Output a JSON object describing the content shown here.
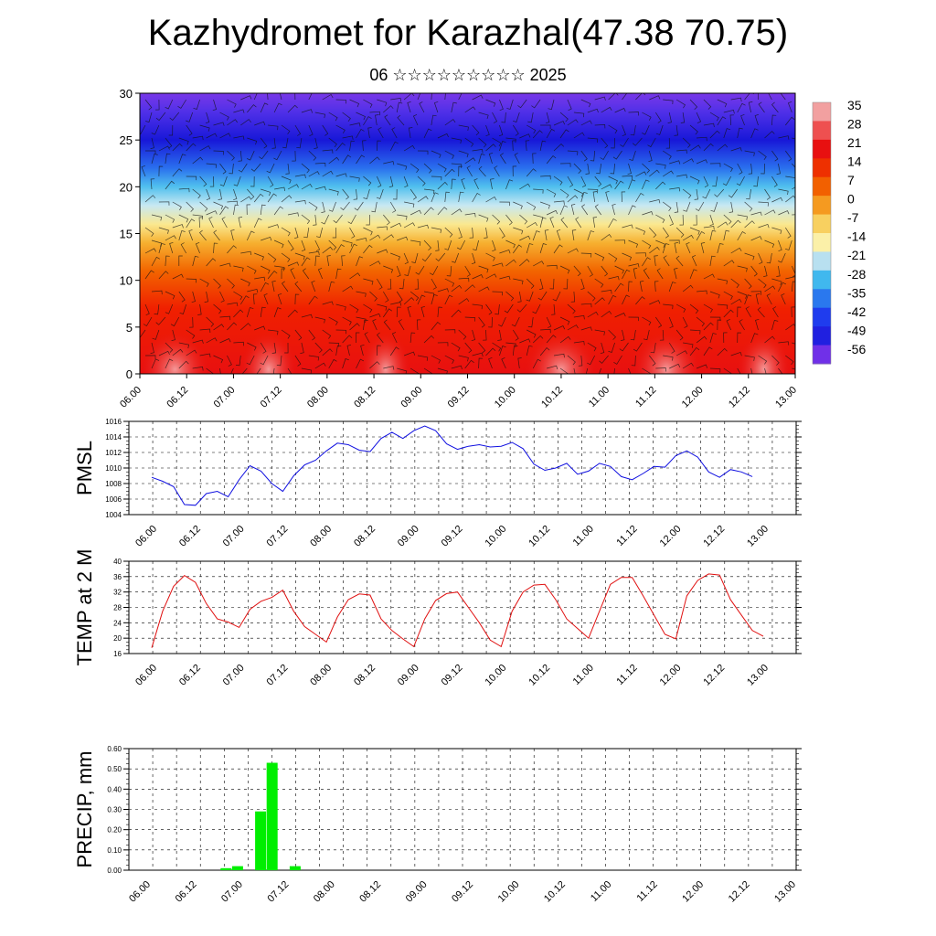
{
  "header": {
    "title": "Kazhydromet for Karazhal(47.38 70.75)",
    "subtitle": "06 ☆☆☆☆☆☆☆☆☆ 2025"
  },
  "time_labels": [
    "06.00",
    "06.12",
    "07.00",
    "07.12",
    "08.00",
    "08.12",
    "09.00",
    "09.12",
    "10.00",
    "10.12",
    "11.00",
    "11.12",
    "12.00",
    "12.12",
    "13.00"
  ],
  "colors": {
    "pmsl_line": "#1010e0",
    "temp_line": "#e01010",
    "precip_bar": "#00ee00"
  },
  "chart_data": [
    {
      "type": "heatmap",
      "name_id": "cross-section",
      "xlabel": "",
      "ylabel": "",
      "ylim": [
        0,
        30
      ],
      "yticks": [
        0,
        5,
        10,
        15,
        20,
        25,
        30
      ],
      "colorbar": {
        "labels": [
          "35",
          "28",
          "21",
          "14",
          "7",
          "0",
          "-7",
          "-14",
          "-21",
          "-28",
          "-35",
          "-42",
          "-49",
          "-56"
        ],
        "colors": [
          "#f2a0a0",
          "#ee5050",
          "#e81010",
          "#ee3000",
          "#f26000",
          "#f59a20",
          "#f8d060",
          "#fbf0a8",
          "#b8e0f0",
          "#40b8ee",
          "#2a78ee",
          "#1f3cee",
          "#2020e0",
          "#7030e8"
        ]
      },
      "field_stops": [
        {
          "level": 0,
          "color": "#e81010"
        },
        {
          "level": 7,
          "color": "#f02000"
        },
        {
          "level": 11,
          "color": "#f26500"
        },
        {
          "level": 14,
          "color": "#f6b030"
        },
        {
          "level": 16,
          "color": "#fae890"
        },
        {
          "level": 18,
          "color": "#c8e8f2"
        },
        {
          "level": 20,
          "color": "#50c0ee"
        },
        {
          "level": 22,
          "color": "#2a70ee"
        },
        {
          "level": 25,
          "color": "#1818d8"
        },
        {
          "level": 28,
          "color": "#5030e8"
        },
        {
          "level": 30,
          "color": "#7838e8"
        }
      ]
    },
    {
      "type": "line",
      "name_id": "pmsl",
      "ylabel": "PMSL",
      "ylim": [
        1004,
        1016
      ],
      "yticks": [
        1004,
        1006,
        1008,
        1010,
        1012,
        1014,
        1016
      ],
      "x": [
        0,
        3,
        6,
        9,
        12,
        15,
        18,
        21,
        24,
        27,
        30,
        33,
        36,
        39,
        42,
        45,
        48,
        51,
        54,
        57,
        60,
        63,
        66,
        69,
        72,
        75,
        78,
        81,
        84,
        87,
        90,
        93,
        96,
        99,
        102,
        105,
        108,
        111,
        114,
        117,
        120,
        123,
        126,
        129,
        132,
        135,
        138,
        141,
        144,
        147,
        150,
        153,
        156,
        159,
        162,
        165
      ],
      "series": [
        {
          "values": [
            1008.8,
            1008.3,
            1007.6,
            1005.3,
            1005.2,
            1006.7,
            1007.0,
            1006.3,
            1008.5,
            1010.3,
            1009.6,
            1008.0,
            1007.0,
            1009.0,
            1010.4,
            1011.0,
            1012.2,
            1013.2,
            1013.0,
            1012.3,
            1012.1,
            1013.8,
            1014.6,
            1013.8,
            1014.8,
            1015.4,
            1014.8,
            1013.1,
            1012.4,
            1012.8,
            1013.0,
            1012.7,
            1012.8,
            1013.3,
            1012.5,
            1010.5,
            1009.7,
            1010.0,
            1010.6,
            1009.2,
            1009.6,
            1010.6,
            1010.2,
            1008.9,
            1008.5,
            1009.3,
            1010.2,
            1010.1,
            1011.6,
            1012.2,
            1011.4,
            1009.5,
            1008.8,
            1009.8,
            1009.5,
            1008.9
          ]
        }
      ]
    },
    {
      "type": "line",
      "name_id": "temp",
      "ylabel": "TEMP at 2 M",
      "ylim": [
        16,
        40
      ],
      "yticks": [
        16,
        20,
        24,
        28,
        32,
        36,
        40
      ],
      "x": [
        0,
        3,
        6,
        9,
        12,
        15,
        18,
        21,
        24,
        27,
        30,
        33,
        36,
        39,
        42,
        45,
        48,
        51,
        54,
        57,
        60,
        63,
        66,
        69,
        72,
        75,
        78,
        81,
        84,
        87,
        90,
        93,
        96,
        99,
        102,
        105,
        108,
        111,
        114,
        117,
        120,
        123,
        126,
        129,
        132,
        135,
        138,
        141,
        144,
        147,
        150,
        153,
        156,
        159,
        162,
        165,
        168
      ],
      "series": [
        {
          "values": [
            17.5,
            27.0,
            33.5,
            36.3,
            34.5,
            29.0,
            25.0,
            24.2,
            22.8,
            27.5,
            29.6,
            30.6,
            32.5,
            27.0,
            23.0,
            21.0,
            19.0,
            25.5,
            30.0,
            31.5,
            31.2,
            25.0,
            22.0,
            19.8,
            17.8,
            25.0,
            29.8,
            31.6,
            32.0,
            28.0,
            24.0,
            19.5,
            17.8,
            27.0,
            32.0,
            33.8,
            34.0,
            30.0,
            25.0,
            22.5,
            20.0,
            27.0,
            34.0,
            35.8,
            35.8,
            31.0,
            26.0,
            21.0,
            19.8,
            31.0,
            35.0,
            36.7,
            36.4,
            30.0,
            26.0,
            22.0,
            20.5
          ]
        }
      ]
    },
    {
      "type": "bar",
      "name_id": "precip",
      "ylabel": "PRECIP, mm",
      "ylim": [
        0,
        0.6
      ],
      "yticks": [
        "0.00",
        "0.10",
        "0.20",
        "0.30",
        "0.40",
        "0.50",
        "0.60"
      ],
      "bars": [
        {
          "hour": 21,
          "value": 0.01
        },
        {
          "hour": 24,
          "value": 0.02
        },
        {
          "hour": 30,
          "value": 0.29
        },
        {
          "hour": 33,
          "value": 0.53
        },
        {
          "hour": 39,
          "value": 0.02
        }
      ]
    }
  ]
}
